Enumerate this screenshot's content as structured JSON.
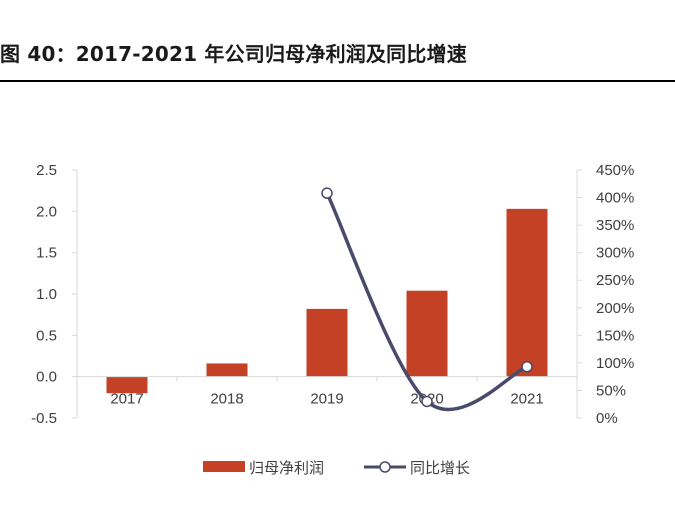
{
  "figure": {
    "title": "图 40：2017-2021 年公司归母净利润及同比增速"
  },
  "chart_data": {
    "type": "bar",
    "title": "图 40：2017-2021 年公司归母净利润及同比增速",
    "categories": [
      "2017",
      "2018",
      "2019",
      "2020",
      "2021"
    ],
    "series": [
      {
        "name": "归母净利润",
        "type": "bar",
        "axis": "left",
        "color": "#c44125",
        "values": [
          -0.2,
          0.16,
          0.82,
          1.04,
          2.03
        ]
      },
      {
        "name": "同比增长",
        "type": "line",
        "axis": "right",
        "color": "#4a4a6a",
        "unit": "%",
        "values": [
          null,
          null,
          408,
          30,
          93
        ]
      }
    ],
    "y_left": {
      "lim": [
        -0.5,
        2.5
      ],
      "ticks": [
        -0.5,
        0.0,
        0.5,
        1.0,
        1.5,
        2.0,
        2.5
      ],
      "tick_labels": [
        "-0.5",
        "0.0",
        "0.5",
        "1.0",
        "1.5",
        "2.0",
        "2.5"
      ]
    },
    "y_right": {
      "lim": [
        0,
        450
      ],
      "ticks": [
        0,
        50,
        100,
        150,
        200,
        250,
        300,
        350,
        400,
        450
      ],
      "tick_labels": [
        "0%",
        "50%",
        "100%",
        "150%",
        "200%",
        "250%",
        "300%",
        "350%",
        "400%",
        "450%"
      ]
    },
    "grid": false,
    "legend_position": "bottom-center"
  }
}
